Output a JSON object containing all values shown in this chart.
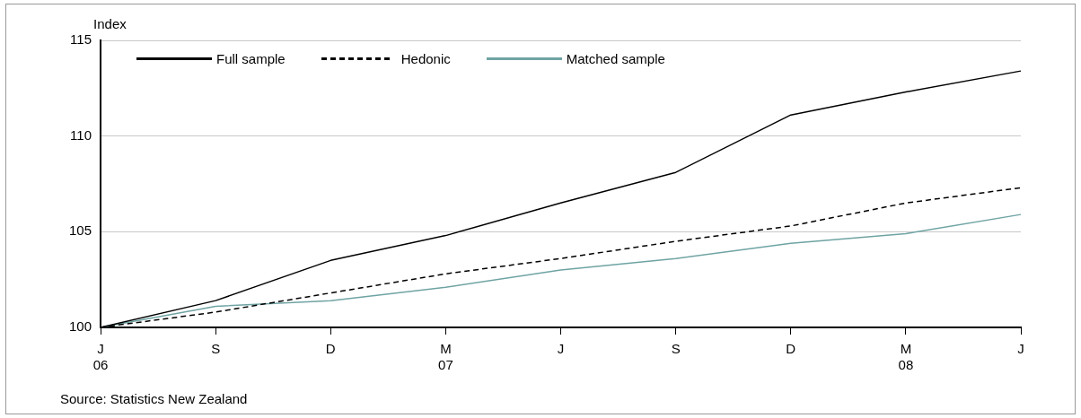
{
  "chart_data": {
    "type": "line",
    "ylabel": "Index",
    "categories": [
      "J\n06",
      "S",
      "D",
      "M\n07",
      "J",
      "S",
      "D",
      "M\n08",
      "J"
    ],
    "series": [
      {
        "name": "Full sample",
        "color": "#000000",
        "line_style": "solid",
        "values": [
          100,
          101.4,
          103.5,
          104.8,
          106.5,
          108.1,
          111.1,
          112.3,
          113.4
        ]
      },
      {
        "name": "Hedonic",
        "color": "#000000",
        "line_style": "dashed",
        "values": [
          100,
          100.8,
          101.8,
          102.8,
          103.6,
          104.5,
          105.3,
          106.5,
          107.3
        ]
      },
      {
        "name": "Matched sample",
        "color": "#6fa3a3",
        "line_style": "solid",
        "values": [
          100,
          101.1,
          101.4,
          102.1,
          103.0,
          103.6,
          104.4,
          104.9,
          105.9
        ]
      }
    ],
    "ylim": [
      100,
      115
    ],
    "yticks": [
      100,
      105,
      110,
      115
    ],
    "grid": "y",
    "legend": "top left",
    "marker": "none",
    "annotations": [
      "Source: Statistics New Zealand"
    ]
  }
}
